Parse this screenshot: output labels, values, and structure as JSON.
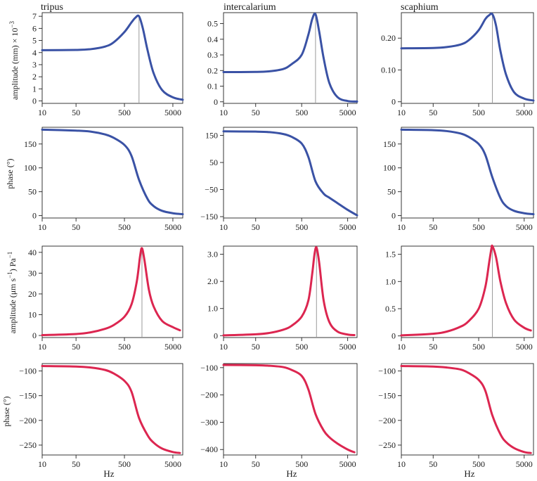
{
  "figure": {
    "column_titles": [
      "tripus",
      "intercalarium",
      "scaphium"
    ],
    "row_ylabels": [
      "amplitude (mm) × 10",
      "phase (°)",
      "amplitude (μm s",
      "phase (°)"
    ],
    "xlabel": "Hz",
    "colors": {
      "blue": "#3a52a5",
      "red": "#dc2650",
      "peak_line": "#9a9a9a"
    }
  },
  "chart_data": [
    {
      "type": "line",
      "id": "r0c0",
      "title": "tripus",
      "ylabel": "amplitude (mm) × 10",
      "ylabel_superscript": "−3",
      "xscale": "log",
      "xlim": [
        10,
        8000
      ],
      "ylim": [
        -0.2,
        7.3
      ],
      "xticks": [
        10,
        50,
        500,
        5000
      ],
      "xticklabels": [
        "10",
        "50",
        "500",
        "5000"
      ],
      "yticks": [
        0,
        1,
        2,
        3,
        4,
        5,
        6,
        7
      ],
      "yticklabels": [
        "0",
        "1",
        "2",
        "3",
        "4",
        "5",
        "6",
        "7"
      ],
      "color": "blue",
      "peak_marker": 1000,
      "series": [
        {
          "name": "tripus amplitude",
          "x": [
            10,
            50,
            100,
            200,
            300,
            500,
            700,
            850,
            1000,
            1200,
            1500,
            2000,
            3000,
            5000,
            8000
          ],
          "y": [
            4.2,
            4.22,
            4.28,
            4.5,
            4.85,
            5.7,
            6.5,
            6.9,
            7.0,
            6.0,
            4.2,
            2.3,
            0.9,
            0.3,
            0.1
          ]
        }
      ]
    },
    {
      "type": "line",
      "id": "r0c1",
      "title": "intercalarium",
      "xscale": "log",
      "xlim": [
        10,
        8000
      ],
      "ylim": [
        -0.01,
        0.57
      ],
      "xticks": [
        10,
        50,
        500,
        5000
      ],
      "xticklabels": [
        "10",
        "50",
        "500",
        "5000"
      ],
      "yticks": [
        0,
        0.1,
        0.2,
        0.3,
        0.4,
        0.5
      ],
      "yticklabels": [
        "0",
        "0.1",
        "0.2",
        "0.3",
        "0.4",
        "0.5"
      ],
      "color": "blue",
      "peak_marker": 1000,
      "series": [
        {
          "name": "intercalarium amplitude",
          "x": [
            10,
            50,
            100,
            200,
            300,
            500,
            700,
            850,
            1000,
            1200,
            1500,
            2000,
            3000,
            5000,
            8000
          ],
          "y": [
            0.19,
            0.191,
            0.195,
            0.21,
            0.24,
            0.3,
            0.43,
            0.53,
            0.56,
            0.45,
            0.28,
            0.12,
            0.03,
            0.005,
            0.002
          ]
        }
      ]
    },
    {
      "type": "line",
      "id": "r0c2",
      "title": "scaphium",
      "xscale": "log",
      "xlim": [
        10,
        8000
      ],
      "ylim": [
        -0.005,
        0.28
      ],
      "xticks": [
        10,
        50,
        500,
        5000
      ],
      "xticklabels": [
        "10",
        "50",
        "500",
        "5000"
      ],
      "yticks": [
        0,
        0.1,
        0.2
      ],
      "yticklabels": [
        "0",
        "0.10",
        "0.20"
      ],
      "color": "blue",
      "peak_marker": 1000,
      "series": [
        {
          "name": "scaphium amplitude",
          "x": [
            10,
            50,
            100,
            200,
            300,
            500,
            700,
            850,
            1000,
            1200,
            1500,
            2000,
            3000,
            5000,
            8000
          ],
          "y": [
            0.168,
            0.169,
            0.172,
            0.18,
            0.193,
            0.225,
            0.26,
            0.272,
            0.275,
            0.24,
            0.16,
            0.085,
            0.03,
            0.01,
            0.004
          ]
        }
      ]
    },
    {
      "type": "line",
      "id": "r1c0",
      "ylabel": "phase (°)",
      "xscale": "log",
      "xlim": [
        10,
        8000
      ],
      "ylim": [
        -5,
        185
      ],
      "xticks": [
        10,
        50,
        500,
        5000
      ],
      "xticklabels": [
        "10",
        "50",
        "500",
        "5000"
      ],
      "yticks": [
        0,
        50,
        100,
        150
      ],
      "yticklabels": [
        "0",
        "50",
        "100",
        "150"
      ],
      "color": "blue",
      "series": [
        {
          "name": "tripus phase",
          "x": [
            10,
            50,
            100,
            200,
            300,
            500,
            700,
            1000,
            1500,
            2000,
            3000,
            5000,
            8000
          ],
          "y": [
            180,
            178,
            176,
            170,
            163,
            148,
            125,
            75,
            35,
            20,
            10,
            5,
            3
          ]
        }
      ]
    },
    {
      "type": "line",
      "id": "r1c1",
      "xscale": "log",
      "xlim": [
        10,
        8000
      ],
      "ylim": [
        -155,
        180
      ],
      "xticks": [
        10,
        50,
        500,
        5000
      ],
      "xticklabels": [
        "10",
        "50",
        "500",
        "5000"
      ],
      "yticks": [
        -150,
        -50,
        50,
        150
      ],
      "yticklabels": [
        "−150",
        "−50",
        "50",
        "150"
      ],
      "color": "blue",
      "series": [
        {
          "name": "intercalarium phase",
          "x": [
            10,
            50,
            100,
            200,
            300,
            500,
            700,
            1000,
            1500,
            2000,
            3000,
            5000,
            8000
          ],
          "y": [
            165,
            164,
            162,
            155,
            145,
            120,
            70,
            -20,
            -65,
            -80,
            -100,
            -125,
            -145
          ]
        }
      ]
    },
    {
      "type": "line",
      "id": "r1c2",
      "xscale": "log",
      "xlim": [
        10,
        8000
      ],
      "ylim": [
        -5,
        185
      ],
      "xticks": [
        10,
        50,
        500,
        5000
      ],
      "xticklabels": [
        "10",
        "50",
        "500",
        "5000"
      ],
      "yticks": [
        0,
        50,
        100,
        150
      ],
      "yticklabels": [
        "0",
        "50",
        "100",
        "150"
      ],
      "color": "blue",
      "series": [
        {
          "name": "scaphium phase",
          "x": [
            10,
            50,
            100,
            200,
            300,
            500,
            700,
            1000,
            1500,
            2000,
            3000,
            5000,
            8000
          ],
          "y": [
            180,
            179,
            177,
            172,
            165,
            150,
            127,
            80,
            37,
            20,
            10,
            5,
            3
          ]
        }
      ]
    },
    {
      "type": "line",
      "id": "r2c0",
      "ylabel": "amplitude (μm s",
      "ylabel_superscript_1": "−1",
      "ylabel_mid": ") Pa",
      "ylabel_superscript_2": "−1",
      "xscale": "log",
      "xlim": [
        10,
        8000
      ],
      "ylim": [
        -1,
        43
      ],
      "xticks": [
        10,
        50,
        500,
        5000
      ],
      "xticklabels": [
        "10",
        "50",
        "500",
        "5000"
      ],
      "yticks": [
        0,
        10,
        20,
        30,
        40
      ],
      "yticklabels": [
        "0",
        "10",
        "20",
        "30",
        "40"
      ],
      "color": "red",
      "peak_marker": 1150,
      "series": [
        {
          "name": "tripus velocity",
          "x": [
            10,
            50,
            100,
            200,
            300,
            500,
            700,
            900,
            1050,
            1150,
            1300,
            1600,
            2000,
            3000,
            5000,
            7000
          ],
          "y": [
            0.15,
            0.7,
            1.5,
            3.2,
            5,
            9,
            15,
            26,
            38,
            42,
            36,
            22,
            14,
            7,
            4,
            2.5
          ]
        }
      ]
    },
    {
      "type": "line",
      "id": "r2c1",
      "xscale": "log",
      "xlim": [
        10,
        8000
      ],
      "ylim": [
        -0.07,
        3.3
      ],
      "xticks": [
        10,
        50,
        500,
        5000
      ],
      "xticklabels": [
        "10",
        "50",
        "500",
        "5000"
      ],
      "yticks": [
        0,
        1,
        2,
        3
      ],
      "yticklabels": [
        "0",
        "1.0",
        "2.0",
        "3.0"
      ],
      "color": "red",
      "peak_marker": 1050,
      "series": [
        {
          "name": "intercalarium velocity",
          "x": [
            10,
            50,
            100,
            200,
            300,
            500,
            700,
            850,
            950,
            1050,
            1200,
            1500,
            2000,
            3000,
            5000,
            7000
          ],
          "y": [
            0.01,
            0.05,
            0.1,
            0.22,
            0.36,
            0.7,
            1.3,
            2.3,
            3.0,
            3.25,
            2.7,
            1.3,
            0.5,
            0.15,
            0.04,
            0.02
          ]
        }
      ]
    },
    {
      "type": "line",
      "id": "r2c2",
      "xscale": "log",
      "xlim": [
        10,
        8000
      ],
      "ylim": [
        -0.03,
        1.65
      ],
      "xticks": [
        10,
        50,
        500,
        5000
      ],
      "xticklabels": [
        "10",
        "50",
        "500",
        "5000"
      ],
      "yticks": [
        0,
        0.5,
        1,
        1.5
      ],
      "yticklabels": [
        "0",
        "0.5",
        "1.0",
        "1.5"
      ],
      "color": "red",
      "peak_marker": 1000,
      "series": [
        {
          "name": "scaphium velocity",
          "x": [
            10,
            50,
            100,
            200,
            300,
            500,
            700,
            850,
            950,
            1000,
            1200,
            1500,
            2000,
            3000,
            5000,
            7000
          ],
          "y": [
            0.01,
            0.04,
            0.08,
            0.17,
            0.27,
            0.5,
            0.9,
            1.35,
            1.6,
            1.65,
            1.45,
            1.0,
            0.6,
            0.3,
            0.15,
            0.1
          ]
        }
      ]
    },
    {
      "type": "line",
      "id": "r3c0",
      "ylabel": "phase (°)",
      "xlabel": "Hz",
      "xscale": "log",
      "xlim": [
        10,
        8000
      ],
      "ylim": [
        -270,
        -85
      ],
      "xticks": [
        10,
        50,
        500,
        5000
      ],
      "xticklabels": [
        "10",
        "50",
        "500",
        "5000"
      ],
      "yticks": [
        -250,
        -200,
        -150,
        -100
      ],
      "yticklabels": [
        "−250",
        "−200",
        "−150",
        "−100"
      ],
      "color": "red",
      "series": [
        {
          "name": "tripus velocity phase",
          "x": [
            10,
            50,
            100,
            200,
            300,
            500,
            700,
            1000,
            1500,
            2000,
            3000,
            5000,
            7000
          ],
          "y": [
            -90,
            -91,
            -93,
            -98,
            -105,
            -120,
            -142,
            -195,
            -230,
            -245,
            -257,
            -264,
            -266
          ]
        }
      ]
    },
    {
      "type": "line",
      "id": "r3c1",
      "xlabel": "Hz",
      "xscale": "log",
      "xlim": [
        10,
        8000
      ],
      "ylim": [
        -420,
        -85
      ],
      "xticks": [
        10,
        50,
        500,
        5000
      ],
      "xticklabels": [
        "10",
        "50",
        "500",
        "5000"
      ],
      "yticks": [
        -400,
        -300,
        -200,
        -100
      ],
      "yticklabels": [
        "−400",
        "−300",
        "−200",
        "−100"
      ],
      "color": "red",
      "series": [
        {
          "name": "intercalarium velocity phase",
          "x": [
            10,
            50,
            100,
            200,
            300,
            500,
            700,
            1000,
            1500,
            2000,
            3000,
            5000,
            7000
          ],
          "y": [
            -90,
            -91,
            -93,
            -98,
            -108,
            -130,
            -180,
            -270,
            -330,
            -355,
            -378,
            -400,
            -410
          ]
        }
      ]
    },
    {
      "type": "line",
      "id": "r3c2",
      "xlabel": "Hz",
      "xscale": "log",
      "xlim": [
        10,
        8000
      ],
      "ylim": [
        -270,
        -85
      ],
      "xticks": [
        10,
        50,
        500,
        5000
      ],
      "xticklabels": [
        "10",
        "50",
        "500",
        "5000"
      ],
      "yticks": [
        -250,
        -200,
        -150,
        -100
      ],
      "yticklabels": [
        "−250",
        "−200",
        "−150",
        "−100"
      ],
      "color": "red",
      "series": [
        {
          "name": "scaphium velocity phase",
          "x": [
            10,
            50,
            100,
            200,
            300,
            500,
            700,
            1000,
            1500,
            2000,
            3000,
            5000,
            7000
          ],
          "y": [
            -90,
            -91,
            -93,
            -97,
            -104,
            -118,
            -140,
            -190,
            -228,
            -244,
            -256,
            -264,
            -266
          ]
        }
      ]
    }
  ]
}
